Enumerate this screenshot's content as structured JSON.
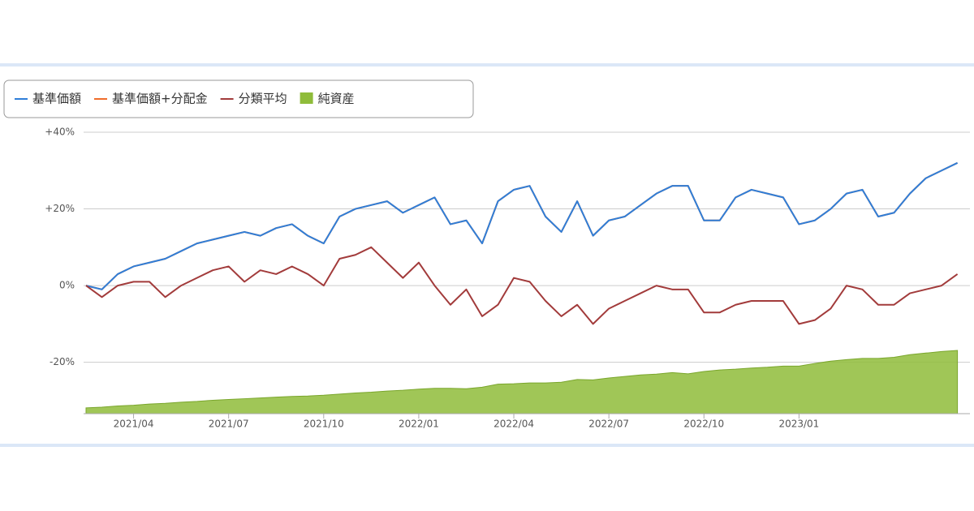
{
  "chart_data": {
    "type": "line",
    "categories": [
      null,
      null,
      null,
      "2021/04",
      null,
      null,
      null,
      null,
      null,
      "2021/07",
      null,
      null,
      null,
      null,
      null,
      "2021/10",
      null,
      null,
      null,
      null,
      null,
      "2022/01",
      null,
      null,
      null,
      null,
      null,
      "2022/04",
      null,
      null,
      null,
      null,
      null,
      "2022/07",
      null,
      null,
      null,
      null,
      null,
      "2022/10",
      null,
      null,
      null,
      null,
      null,
      "2023/01",
      null,
      null,
      null,
      null,
      null,
      null,
      null,
      null,
      null,
      null
    ],
    "series": [
      {
        "name": "基準価額+分配金",
        "color": "#ef6c2a",
        "values": [
          0,
          -1,
          3,
          5,
          6,
          7,
          9,
          11,
          12,
          13,
          14,
          13,
          15,
          16,
          13,
          11,
          18,
          20,
          21,
          22,
          19,
          21,
          23,
          16,
          17,
          11,
          22,
          25,
          26,
          18,
          14,
          22,
          13,
          17,
          18,
          21,
          24,
          26,
          26,
          17,
          17,
          23,
          25,
          24,
          23,
          16,
          17,
          20,
          24,
          25,
          18,
          19,
          24,
          28,
          30,
          32
        ]
      },
      {
        "name": "基準価額",
        "color": "#2f7ed8",
        "values": [
          0,
          -1,
          3,
          5,
          6,
          7,
          9,
          11,
          12,
          13,
          14,
          13,
          15,
          16,
          13,
          11,
          18,
          20,
          21,
          22,
          19,
          21,
          23,
          16,
          17,
          11,
          22,
          25,
          26,
          18,
          14,
          22,
          13,
          17,
          18,
          21,
          24,
          26,
          26,
          17,
          17,
          23,
          25,
          24,
          23,
          16,
          17,
          20,
          24,
          25,
          18,
          19,
          24,
          28,
          30,
          32
        ]
      },
      {
        "name": "分類平均",
        "color": "#a23b3b",
        "values": [
          0,
          -3,
          0,
          1,
          1,
          -3,
          0,
          2,
          4,
          5,
          1,
          4,
          3,
          5,
          3,
          0,
          7,
          8,
          10,
          6,
          2,
          6,
          0,
          -5,
          -1,
          -8,
          -5,
          2,
          1,
          -4,
          -8,
          -5,
          -10,
          -6,
          -4,
          -2,
          0,
          -1,
          -1,
          -7,
          -7,
          -5,
          -4,
          -4,
          -4,
          -10,
          -9,
          -6,
          0,
          -1,
          -5,
          -5,
          -2,
          -1,
          0,
          3
        ]
      },
      {
        "name": "純資産",
        "color": "#8fbc3a",
        "type": "area",
        "values": [
          -31.9,
          -31.7,
          -31.4,
          -31.2,
          -30.9,
          -30.7,
          -30.4,
          -30.2,
          -29.9,
          -29.7,
          -29.5,
          -29.3,
          -29.1,
          -28.9,
          -28.8,
          -28.6,
          -28.3,
          -28.0,
          -27.8,
          -27.5,
          -27.3,
          -27.0,
          -26.8,
          -26.8,
          -26.9,
          -26.5,
          -25.7,
          -25.6,
          -25.4,
          -25.4,
          -25.2,
          -24.5,
          -24.6,
          -24.1,
          -23.7,
          -23.3,
          -23.1,
          -22.7,
          -23.0,
          -22.4,
          -22.0,
          -21.8,
          -21.5,
          -21.3,
          -21.0,
          -21.0,
          -20.3,
          -19.7,
          -19.3,
          -19.0,
          -19.0,
          -18.7,
          -18.0,
          -17.6,
          -17.2,
          -16.9
        ]
      }
    ],
    "legend_order": [
      1,
      0,
      2,
      3
    ],
    "ylim": [
      -33.4,
      40
    ],
    "yticks": [
      {
        "value": -20,
        "label": "-20%"
      },
      {
        "value": 0,
        "label": "0%"
      },
      {
        "value": 20,
        "label": "+20%"
      },
      {
        "value": 40,
        "label": "+40%"
      }
    ],
    "grid": true
  }
}
